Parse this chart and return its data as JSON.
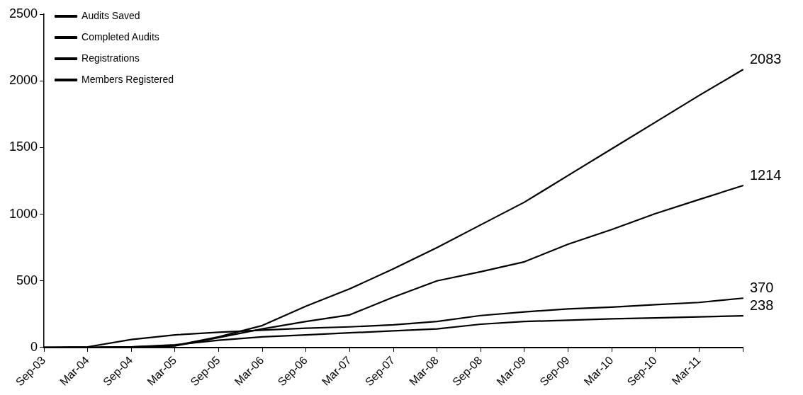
{
  "chart_data": {
    "type": "line",
    "categories": [
      "Sep-03",
      "Mar-04",
      "Sep-04",
      "Mar-05",
      "Sep-05",
      "Mar-06",
      "Sep-06",
      "Mar-07",
      "Sep-07",
      "Mar-08",
      "Sep-08",
      "Mar-09",
      "Sep-09",
      "Mar-10",
      "Sep-10",
      "Mar-11",
      null
    ],
    "series": [
      {
        "name": "Audits Saved",
        "color": "#000000",
        "values": [
          0,
          0,
          5,
          15,
          80,
          165,
          310,
          440,
          590,
          750,
          920,
          1090,
          1290,
          1490,
          1690,
          1890,
          2083
        ],
        "value_labels": [
          null,
          null,
          null,
          null,
          null,
          null,
          null,
          null,
          null,
          null,
          null,
          null,
          null,
          null,
          null,
          null,
          "2083"
        ]
      },
      {
        "name": "Completed Audits",
        "color": "#000000",
        "values": [
          0,
          0,
          3,
          12,
          75,
          140,
          195,
          245,
          378,
          500,
          568,
          643,
          775,
          885,
          1004,
          1110,
          1214
        ],
        "value_labels": [
          null,
          null,
          null,
          null,
          null,
          null,
          null,
          null,
          null,
          null,
          null,
          null,
          null,
          null,
          null,
          null,
          "1214"
        ]
      },
      {
        "name": "Registrations",
        "color": "#000000",
        "values": [
          0,
          5,
          60,
          95,
          115,
          130,
          145,
          155,
          170,
          195,
          240,
          267,
          290,
          303,
          322,
          338,
          370
        ],
        "value_labels": [
          null,
          null,
          null,
          null,
          null,
          null,
          null,
          null,
          null,
          null,
          null,
          null,
          null,
          null,
          null,
          null,
          "370"
        ]
      },
      {
        "name": "Members Registered",
        "color": "#000000",
        "values": [
          0,
          0,
          5,
          20,
          55,
          80,
          95,
          110,
          125,
          140,
          175,
          195,
          205,
          215,
          222,
          230,
          238
        ],
        "value_labels": [
          null,
          null,
          null,
          null,
          null,
          null,
          null,
          null,
          null,
          null,
          null,
          null,
          null,
          null,
          null,
          null,
          "238"
        ]
      }
    ],
    "ylim": [
      0,
      2500
    ],
    "yticks": [
      0,
      500,
      1000,
      1500,
      2000,
      2500
    ],
    "grid": false,
    "legend": "top left",
    "marker": "none",
    "line_style": "solid"
  }
}
